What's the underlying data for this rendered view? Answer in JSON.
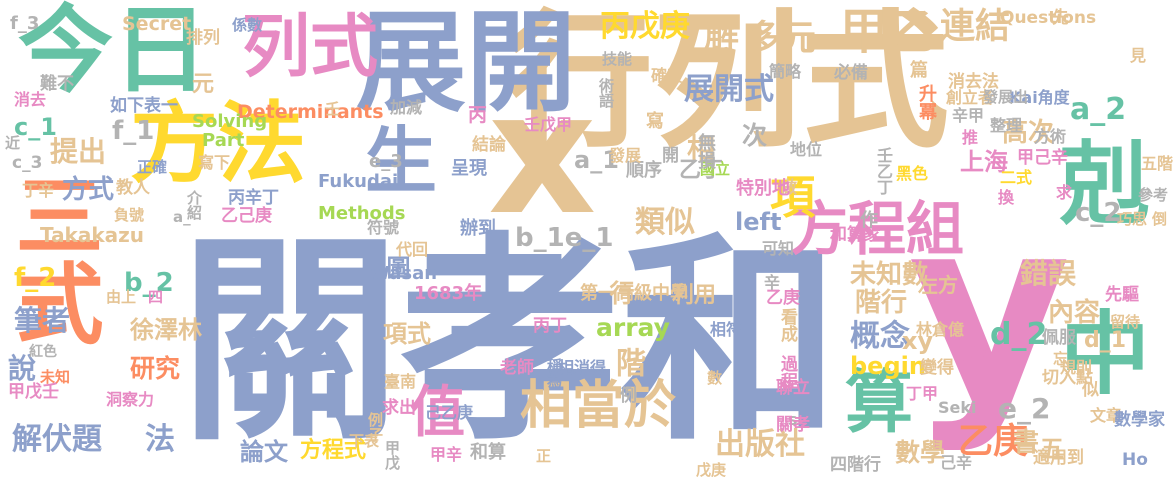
{
  "palette": {
    "blue": "#8da0cb",
    "tan": "#e5c494",
    "green": "#66c2a5",
    "orange": "#fc8d62",
    "yellow": "#ffd92f",
    "pink": "#e78ac3",
    "lime": "#a6d854",
    "gray": "#b3b3b3"
  },
  "words": [
    {
      "text": "關孝和",
      "color": "blue"
    },
    {
      "text": "行列式",
      "color": "tan"
    },
    {
      "text": "展開",
      "color": "blue"
    },
    {
      "text": "x",
      "color": "tan"
    },
    {
      "text": "y",
      "color": "pink"
    },
    {
      "text": "今日",
      "color": "green"
    },
    {
      "text": "方法",
      "color": "yellow"
    },
    {
      "text": "列式",
      "color": "pink"
    },
    {
      "text": "生",
      "color": "blue"
    },
    {
      "text": "三式",
      "color": "orange"
    },
    {
      "text": "剋",
      "color": "green"
    },
    {
      "text": "中",
      "color": "green"
    },
    {
      "text": "方程組",
      "color": "pink"
    },
    {
      "text": "算",
      "color": "green"
    },
    {
      "text": "項",
      "color": "yellow"
    },
    {
      "text": "相當於",
      "color": "tan"
    },
    {
      "text": "值",
      "color": "pink"
    },
    {
      "text": "乙庚",
      "color": "orange"
    },
    {
      "text": "甲乙",
      "color": "tan"
    },
    {
      "text": "連結",
      "color": "tan"
    },
    {
      "text": "解",
      "color": "tan"
    },
    {
      "text": "多元",
      "color": "tan"
    },
    {
      "text": "丙戊庚",
      "color": "yellow"
    },
    {
      "text": "a_2",
      "color": "green"
    },
    {
      "text": "高次",
      "color": "tan"
    },
    {
      "text": "展開式",
      "color": "blue"
    },
    {
      "text": "錯誤",
      "color": "tan"
    },
    {
      "text": "內容",
      "color": "tan"
    },
    {
      "text": "上海",
      "color": "pink"
    },
    {
      "text": "c_2",
      "color": "gray"
    },
    {
      "text": "解伏題",
      "color": "blue"
    },
    {
      "text": "法",
      "color": "blue"
    },
    {
      "text": "出版社",
      "color": "tan"
    },
    {
      "text": "類似",
      "color": "tan"
    },
    {
      "text": "b_1e_1",
      "color": "gray"
    },
    {
      "text": "left",
      "color": "blue"
    },
    {
      "text": "array",
      "color": "lime"
    },
    {
      "text": "概念",
      "color": "blue"
    },
    {
      "text": "xy",
      "color": "tan"
    },
    {
      "text": "begin",
      "color": "yellow"
    },
    {
      "text": "未知數",
      "color": "tan"
    },
    {
      "text": "階行",
      "color": "tan"
    },
    {
      "text": "d_2",
      "color": "green"
    },
    {
      "text": "d_1",
      "color": "tan"
    },
    {
      "text": "e_2",
      "color": "gray"
    },
    {
      "text": "書",
      "color": "tan"
    },
    {
      "text": "五",
      "color": "tan"
    },
    {
      "text": "數學",
      "color": "tan"
    },
    {
      "text": "論文",
      "color": "blue"
    },
    {
      "text": "方程式",
      "color": "yellow"
    },
    {
      "text": "筆者",
      "color": "blue"
    },
    {
      "text": "徐澤林",
      "color": "tan"
    },
    {
      "text": "研究",
      "color": "orange"
    },
    {
      "text": "說",
      "color": "blue"
    },
    {
      "text": "提出",
      "color": "tan"
    },
    {
      "text": "方式",
      "color": "blue"
    },
    {
      "text": "f_1",
      "color": "gray"
    },
    {
      "text": "c_1",
      "color": "green"
    },
    {
      "text": "b_2",
      "color": "green"
    },
    {
      "text": "f_2",
      "color": "yellow"
    },
    {
      "text": "a_1",
      "color": "gray"
    },
    {
      "text": "相",
      "color": "tan"
    },
    {
      "text": "次",
      "color": "gray"
    },
    {
      "text": "乙丁",
      "color": "gray"
    },
    {
      "text": "元",
      "color": "tan"
    },
    {
      "text": "Determinants",
      "color": "orange"
    },
    {
      "text": "Solving",
      "color": "lime"
    },
    {
      "text": "Part",
      "color": "lime"
    },
    {
      "text": "Methods",
      "color": "lime"
    },
    {
      "text": "Fukudai",
      "color": "blue"
    },
    {
      "text": "Takakazu",
      "color": "tan"
    },
    {
      "text": "Wasan",
      "color": "blue"
    },
    {
      "text": "Seki",
      "color": "gray"
    },
    {
      "text": "Kai角度",
      "color": "blue"
    },
    {
      "text": "Questions",
      "color": "tan"
    },
    {
      "text": "Secret",
      "color": "tan"
    },
    {
      "text": "f_3",
      "color": "gray"
    },
    {
      "text": "e_3",
      "color": "gray"
    },
    {
      "text": "c_3",
      "color": "gray"
    },
    {
      "text": "a_",
      "color": "gray"
    },
    {
      "text": "s",
      "color": "gray"
    },
    {
      "text": "Ho",
      "color": "blue"
    },
    {
      "text": "階",
      "color": "tan"
    },
    {
      "text": "行",
      "color": "tan"
    },
    {
      "text": "圖",
      "color": "blue"
    },
    {
      "text": "項式",
      "color": "tan"
    },
    {
      "text": "1683年",
      "color": "pink"
    },
    {
      "text": "第一高級中學",
      "color": "tan"
    },
    {
      "text": "利用",
      "color": "tan"
    },
    {
      "text": "左方",
      "color": "tan"
    },
    {
      "text": "先驅",
      "color": "pink"
    },
    {
      "text": "留待",
      "color": "tan"
    },
    {
      "text": "佩服",
      "color": "gray"
    },
    {
      "text": "忘",
      "color": "tan"
    },
    {
      "text": "切入點",
      "color": "tan"
    },
    {
      "text": "規則",
      "color": "tan"
    },
    {
      "text": "似",
      "color": "tan"
    },
    {
      "text": "文章",
      "color": "tan"
    },
    {
      "text": "數學家",
      "color": "blue"
    },
    {
      "text": "適用到",
      "color": "tan"
    },
    {
      "text": "四階行",
      "color": "gray"
    },
    {
      "text": "戊庚",
      "color": "tan"
    },
    {
      "text": "正",
      "color": "tan"
    },
    {
      "text": "和算",
      "color": "gray"
    },
    {
      "text": "甲辛",
      "color": "pink"
    },
    {
      "text": "甲戊",
      "color": "gray"
    },
    {
      "text": "下表",
      "color": "tan"
    },
    {
      "text": "例子",
      "color": "tan"
    },
    {
      "text": "己乙庚",
      "color": "blue"
    },
    {
      "text": "丙丁",
      "color": "pink"
    },
    {
      "text": "老師",
      "color": "pink"
    },
    {
      "text": "相消得",
      "color": "blue"
    },
    {
      "text": "稱為",
      "color": "blue"
    },
    {
      "text": "例",
      "color": "gray"
    },
    {
      "text": "數",
      "color": "tan"
    },
    {
      "text": "相符",
      "color": "blue"
    },
    {
      "text": "乙庚",
      "color": "pink"
    },
    {
      "text": "看成",
      "color": "tan"
    },
    {
      "text": "過程",
      "color": "pink"
    },
    {
      "text": "聯立",
      "color": "pink"
    },
    {
      "text": "關孝",
      "color": "pink"
    },
    {
      "text": "丁甲",
      "color": "pink"
    },
    {
      "text": "變得",
      "color": "tan"
    },
    {
      "text": "相乘",
      "color": "pink"
    },
    {
      "text": "林倉億",
      "color": "tan"
    },
    {
      "text": "己辛",
      "color": "gray"
    },
    {
      "text": "辛",
      "color": "gray"
    },
    {
      "text": "可知",
      "color": "gray"
    },
    {
      "text": "和算家",
      "color": "pink"
    },
    {
      "text": "作",
      "color": "gray"
    },
    {
      "text": "做",
      "color": "tan"
    },
    {
      "text": "特別地",
      "color": "pink"
    },
    {
      "text": "國立",
      "color": "lime"
    },
    {
      "text": "黑色",
      "color": "yellow"
    },
    {
      "text": "地位",
      "color": "gray"
    },
    {
      "text": "壬乙丁",
      "color": "gray"
    },
    {
      "text": "無損",
      "color": "gray"
    },
    {
      "text": "開",
      "color": "gray"
    },
    {
      "text": "寫",
      "color": "tan"
    },
    {
      "text": "順序",
      "color": "gray"
    },
    {
      "text": "發展",
      "color": "tan"
    },
    {
      "text": "辦到",
      "color": "blue"
    },
    {
      "text": "呈現",
      "color": "blue"
    },
    {
      "text": "結論",
      "color": "tan"
    },
    {
      "text": "丙",
      "color": "pink"
    },
    {
      "text": "壬戊甲",
      "color": "pink"
    },
    {
      "text": "術語",
      "color": "gray"
    },
    {
      "text": "確實",
      "color": "tan"
    },
    {
      "text": "技能",
      "color": "gray"
    },
    {
      "text": "簡略",
      "color": "gray"
    },
    {
      "text": "必備",
      "color": "gray"
    },
    {
      "text": "篇",
      "color": "tan"
    },
    {
      "text": "升冪",
      "color": "orange"
    },
    {
      "text": "消去法",
      "color": "tan"
    },
    {
      "text": "先",
      "color": "tan"
    },
    {
      "text": "見",
      "color": "tan"
    },
    {
      "text": "創立者",
      "color": "tan"
    },
    {
      "text": "發展出",
      "color": "gray"
    },
    {
      "text": "辛甲",
      "color": "gray"
    },
    {
      "text": "整理",
      "color": "gray"
    },
    {
      "text": "推",
      "color": "pink"
    },
    {
      "text": "方術",
      "color": "gray"
    },
    {
      "text": "甲己辛",
      "color": "pink"
    },
    {
      "text": "五階",
      "color": "tan"
    },
    {
      "text": "二式",
      "color": "yellow"
    },
    {
      "text": "換",
      "color": "pink"
    },
    {
      "text": "求",
      "color": "pink"
    },
    {
      "text": "參考",
      "color": "gray"
    },
    {
      "text": "巧思",
      "color": "tan"
    },
    {
      "text": "倒",
      "color": "tan"
    },
    {
      "text": "加減",
      "color": "gray"
    },
    {
      "text": "壬",
      "color": "tan"
    },
    {
      "text": "寫下",
      "color": "tan"
    },
    {
      "text": "丙辛丁",
      "color": "blue"
    },
    {
      "text": "乙己庚",
      "color": "pink"
    },
    {
      "text": "符號",
      "color": "gray"
    },
    {
      "text": "代回",
      "color": "tan"
    },
    {
      "text": "介紹",
      "color": "gray"
    },
    {
      "text": "教人",
      "color": "tan"
    },
    {
      "text": "正確",
      "color": "blue"
    },
    {
      "text": "負號",
      "color": "tan"
    },
    {
      "text": "丁辛",
      "color": "tan"
    },
    {
      "text": "近",
      "color": "gray"
    },
    {
      "text": "消去",
      "color": "pink"
    },
    {
      "text": "難不",
      "color": "gray"
    },
    {
      "text": "如下表一",
      "color": "blue"
    },
    {
      "text": "排列",
      "color": "tan"
    },
    {
      "text": "係數",
      "color": "blue"
    },
    {
      "text": "由上",
      "color": "tan"
    },
    {
      "text": "四",
      "color": "pink"
    },
    {
      "text": "紅色",
      "color": "gray"
    },
    {
      "text": "未知",
      "color": "orange"
    },
    {
      "text": "甲戊壬",
      "color": "pink"
    },
    {
      "text": "洞察力",
      "color": "pink"
    },
    {
      "text": "臺南",
      "color": "tan"
    },
    {
      "text": "求出",
      "color": "pink"
    },
    {
      "text": "定",
      "color": "tan"
    },
    {
      "text": "話",
      "color": "tan"
    }
  ]
}
